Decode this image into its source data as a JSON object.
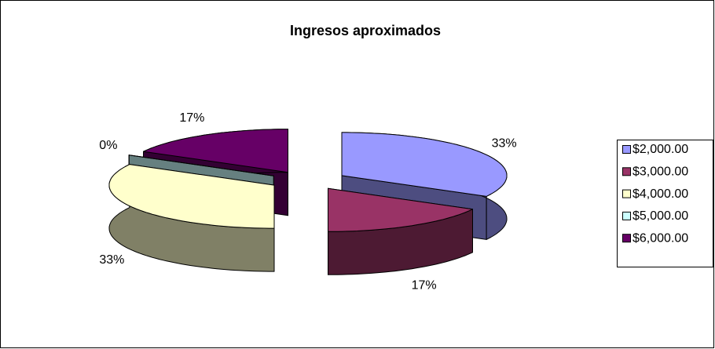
{
  "chart_data": {
    "type": "pie",
    "title": "Ingresos aproximados",
    "categories": [
      "$2,000.00",
      "$3,000.00",
      "$4,000.00",
      "$5,000.00",
      "$6,000.00"
    ],
    "values": [
      33,
      17,
      33,
      0,
      17
    ],
    "value_labels": [
      "33%",
      "17%",
      "33%",
      "0%",
      "17%"
    ],
    "colors": [
      "#9999ff",
      "#993366",
      "#ffffcc",
      "#ccffff",
      "#660066"
    ],
    "legend": "right"
  }
}
